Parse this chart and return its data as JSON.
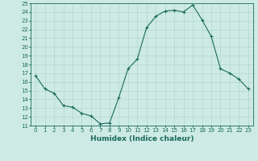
{
  "xlabel": "Humidex (Indice chaleur)",
  "x_values": [
    0,
    1,
    2,
    3,
    4,
    5,
    6,
    7,
    8,
    9,
    10,
    11,
    12,
    13,
    14,
    15,
    16,
    17,
    18,
    19,
    20,
    21,
    22,
    23
  ],
  "y_values": [
    16.7,
    15.2,
    14.7,
    13.3,
    13.1,
    12.4,
    12.1,
    11.2,
    11.3,
    14.2,
    17.5,
    18.6,
    22.2,
    23.5,
    24.1,
    24.2,
    24.0,
    24.8,
    23.1,
    21.2,
    17.5,
    17.0,
    16.3,
    15.2
  ],
  "ylim": [
    11,
    25
  ],
  "xlim": [
    -0.5,
    23.5
  ],
  "yticks": [
    11,
    12,
    13,
    14,
    15,
    16,
    17,
    18,
    19,
    20,
    21,
    22,
    23,
    24,
    25
  ],
  "xticks": [
    0,
    1,
    2,
    3,
    4,
    5,
    6,
    7,
    8,
    9,
    10,
    11,
    12,
    13,
    14,
    15,
    16,
    17,
    18,
    19,
    20,
    21,
    22,
    23
  ],
  "line_color": "#1a6b5a",
  "marker": "+",
  "bg_color": "#ceeae4",
  "grid_color": "#aad4cc",
  "axis_color": "#1a6b5a",
  "tick_color": "#1a6b5a",
  "label_color": "#1a6b5a",
  "tick_fontsize": 5.0,
  "xlabel_fontsize": 6.5,
  "marker_size": 3.5,
  "linewidth": 0.8
}
